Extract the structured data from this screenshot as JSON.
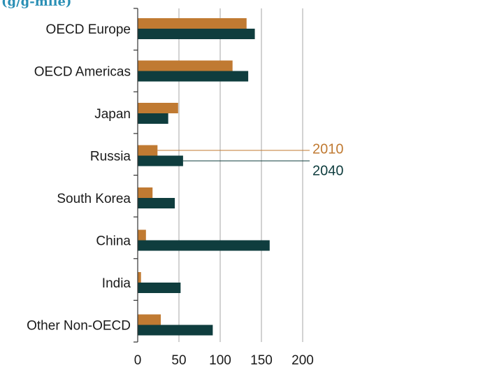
{
  "unit_label": "(g/g-mile)",
  "colors": {
    "series_2010": "#c07a32",
    "series_2040": "#0f3d3e",
    "gridline": "#a6a6a6",
    "axis": "#333333",
    "unit_label": "#2a8fb5"
  },
  "chart_data": {
    "type": "bar",
    "orientation": "horizontal",
    "categories": [
      "OECD Europe",
      "OECD Americas",
      "Japan",
      "Russia",
      "South Korea",
      "China",
      "India",
      "Other Non-OECD"
    ],
    "series": [
      {
        "name": "2010",
        "values": [
          132,
          115,
          49,
          24,
          18,
          10,
          4,
          28
        ]
      },
      {
        "name": "2040",
        "values": [
          142,
          134,
          37,
          55,
          45,
          160,
          52,
          91
        ]
      }
    ],
    "xlim": [
      0,
      200
    ],
    "xticks": [
      0,
      50,
      100,
      150,
      200
    ],
    "grid": true,
    "legend_placement": "inline callouts"
  }
}
